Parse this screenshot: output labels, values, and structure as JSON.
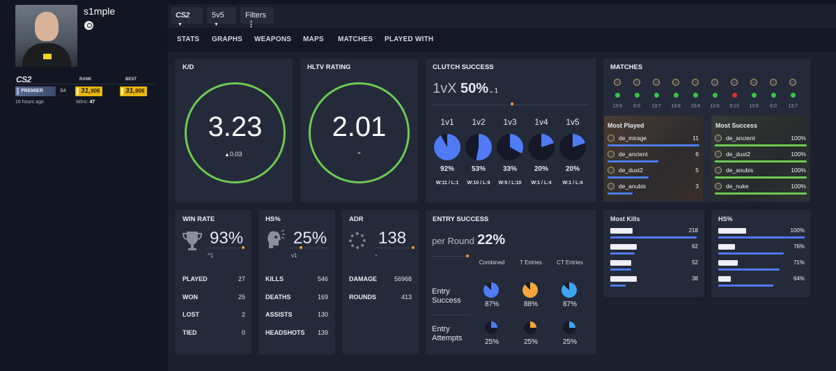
{
  "profile": {
    "name": "s1mple",
    "rank_header": "RANK",
    "best_header": "BEST",
    "mode": "PREMIER",
    "season": "S4",
    "rank_main": "31,",
    "rank_small": "906",
    "best_main": "31,",
    "best_small": "906",
    "last_seen": "16 hours ago",
    "wins_label": "Wins:",
    "wins_value": "47",
    "game_logo": "CS2"
  },
  "toolbar": {
    "game": "CS2",
    "mode": "5v5",
    "filters": "Filters"
  },
  "tabs": [
    "STATS",
    "GRAPHS",
    "WEAPONS",
    "MAPS",
    "MATCHES",
    "PLAYED WITH"
  ],
  "kd": {
    "title": "K/D",
    "value": "3.23",
    "delta": "0.03"
  },
  "hltv": {
    "title": "HLTV RATING",
    "value": "2.01",
    "delta": "-"
  },
  "clutch": {
    "title": "CLUTCH SUCCESS",
    "prefix": "1vX",
    "value": "50%",
    "delta": "1",
    "items": [
      {
        "label": "1v1",
        "pct": "92%",
        "record": "W:11 / L:1",
        "frac": 0.92
      },
      {
        "label": "1v2",
        "pct": "53%",
        "record": "W:10 / L:9",
        "frac": 0.53
      },
      {
        "label": "1v3",
        "pct": "33%",
        "record": "W:5 / L:10",
        "frac": 0.33
      },
      {
        "label": "1v4",
        "pct": "20%",
        "record": "W:1 / L:4",
        "frac": 0.2
      },
      {
        "label": "1v5",
        "pct": "20%",
        "record": "W:1 / L:4",
        "frac": 0.2
      }
    ]
  },
  "matches": {
    "title": "MATCHES",
    "results": [
      {
        "win": true,
        "score": "13:9"
      },
      {
        "win": true,
        "score": "6:0"
      },
      {
        "win": true,
        "score": "13:7"
      },
      {
        "win": true,
        "score": "13:9"
      },
      {
        "win": true,
        "score": "13:4"
      },
      {
        "win": true,
        "score": "13:6"
      },
      {
        "win": false,
        "score": "9:13"
      },
      {
        "win": true,
        "score": "13:9"
      },
      {
        "win": true,
        "score": "6:0"
      },
      {
        "win": true,
        "score": "13:7"
      }
    ]
  },
  "most_played": {
    "title": "Most Played",
    "rows": [
      {
        "map": "de_mirage",
        "value": "11",
        "frac": 1.0
      },
      {
        "map": "de_ancient",
        "value": "6",
        "frac": 0.55
      },
      {
        "map": "de_dust2",
        "value": "5",
        "frac": 0.45
      },
      {
        "map": "de_anubis",
        "value": "3",
        "frac": 0.27
      }
    ]
  },
  "most_success": {
    "title": "Most Success",
    "rows": [
      {
        "map": "de_ancient",
        "value": "100%",
        "frac": 1.0
      },
      {
        "map": "de_dust2",
        "value": "100%",
        "frac": 1.0
      },
      {
        "map": "de_anubis",
        "value": "100%",
        "frac": 1.0
      },
      {
        "map": "de_nuke",
        "value": "100%",
        "frac": 1.0
      }
    ]
  },
  "winrate": {
    "title": "WIN RATE",
    "value": "93%",
    "delta": "1",
    "rows": [
      {
        "label": "PLAYED",
        "value": "27"
      },
      {
        "label": "WON",
        "value": "25"
      },
      {
        "label": "LOST",
        "value": "2"
      },
      {
        "label": "TIED",
        "value": "0"
      }
    ]
  },
  "hs": {
    "title": "HS%",
    "value": "25%",
    "delta": "1",
    "rows": [
      {
        "label": "KILLS",
        "value": "546"
      },
      {
        "label": "DEATHS",
        "value": "169"
      },
      {
        "label": "ASSISTS",
        "value": "130"
      },
      {
        "label": "HEADSHOTS",
        "value": "139"
      }
    ]
  },
  "adr": {
    "title": "ADR",
    "value": "138",
    "delta": "-",
    "rows": [
      {
        "label": "DAMAGE",
        "value": "56968"
      },
      {
        "label": "ROUNDS",
        "value": "413"
      }
    ]
  },
  "entry": {
    "title": "ENTRY SUCCESS",
    "prefix": "per Round",
    "value": "22%",
    "columns": [
      "Combined",
      "T Entries",
      "CT Entries"
    ],
    "success_label": "Entry Success",
    "attempts_label": "Entry Attempts",
    "success": [
      {
        "pct": "87%",
        "frac": 0.87,
        "color": "#4f7cf4"
      },
      {
        "pct": "88%",
        "frac": 0.88,
        "color": "#f2a63b"
      },
      {
        "pct": "87%",
        "frac": 0.87,
        "color": "#3ea6f0"
      }
    ],
    "attempts": [
      {
        "pct": "25%",
        "frac": 0.25,
        "color": "#4f7cf4"
      },
      {
        "pct": "25%",
        "frac": 0.25,
        "color": "#f2a63b"
      },
      {
        "pct": "25%",
        "frac": 0.25,
        "color": "#3ea6f0"
      }
    ]
  },
  "most_kills": {
    "title": "Most Kills",
    "rows": [
      {
        "value": "218",
        "frac": 1.0
      },
      {
        "value": "62",
        "frac": 0.28
      },
      {
        "value": "52",
        "frac": 0.24
      },
      {
        "value": "38",
        "frac": 0.18
      }
    ]
  },
  "hs_weapons": {
    "title": "HS%",
    "rows": [
      {
        "value": "100%",
        "frac": 1.0
      },
      {
        "value": "76%",
        "frac": 0.76
      },
      {
        "value": "71%",
        "frac": 0.71
      },
      {
        "value": "64%",
        "frac": 0.64
      }
    ]
  },
  "colors": {
    "ring": "#6dcc52",
    "blue": "#4f7cf4",
    "green": "#6dcc52",
    "orange": "#f4a522"
  }
}
